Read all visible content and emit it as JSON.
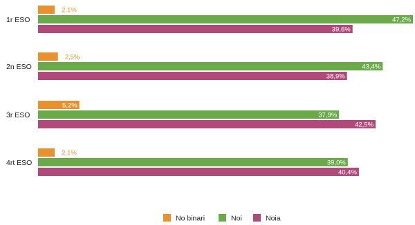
{
  "chart_data": {
    "type": "bar",
    "orientation": "horizontal",
    "categories": [
      "1r ESO",
      "2n ESO",
      "3r ESO",
      "4rt ESO"
    ],
    "series": [
      {
        "name": "No binari",
        "color": "#E8922F",
        "values": [
          2.1,
          2.5,
          5.2,
          2.1
        ],
        "labels": [
          "2,1%",
          "2,5%",
          "5,2%",
          "2,1%"
        ]
      },
      {
        "name": "Noi",
        "color": "#6BAA4A",
        "values": [
          47.2,
          43.4,
          37.9,
          39.0
        ],
        "labels": [
          "47,2%",
          "43,4%",
          "37,9%",
          "39,0%"
        ]
      },
      {
        "name": "Noia",
        "color": "#B04A7A",
        "values": [
          39.6,
          38.9,
          42.5,
          40.4
        ],
        "labels": [
          "39,6%",
          "38,9%",
          "42,5%",
          "40,4%"
        ]
      }
    ],
    "xlim": [
      0,
      47.2
    ],
    "grid": false,
    "legend_position": "bottom-center"
  }
}
